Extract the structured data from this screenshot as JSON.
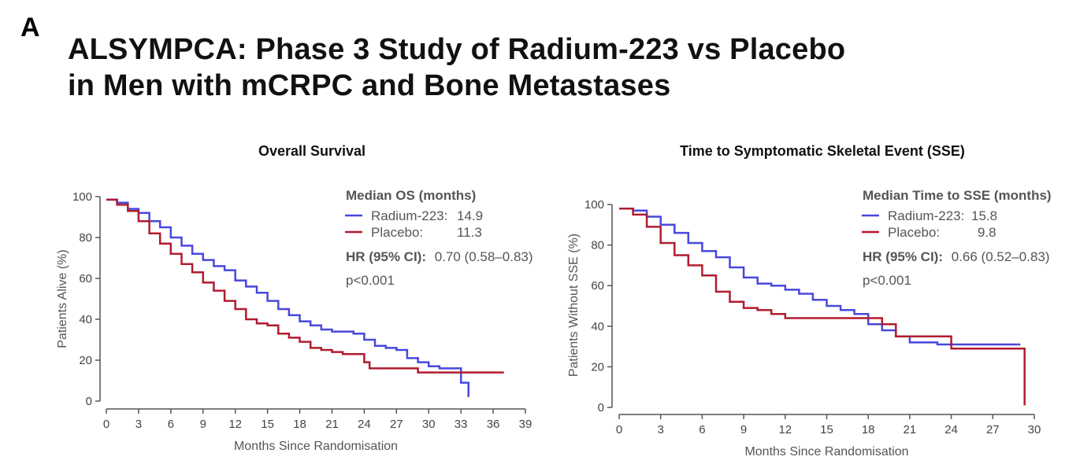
{
  "figure": {
    "panel_label": "A",
    "title_line1": "ALSYMPCA: Phase 3 Study of Radium-223 vs Placebo",
    "title_line2": "in Men with mCRPC and Bone Metastases"
  },
  "colors": {
    "radium": "#4848dc",
    "placebo": "#b01c2e",
    "axis": "#555555"
  },
  "chart_data": [
    {
      "type": "line",
      "title": "Overall Survival",
      "xlabel": "Months Since Randomisation",
      "ylabel": "Patients Alive (%)",
      "xlim": [
        0,
        39
      ],
      "ylim": [
        0,
        100
      ],
      "xticks": [
        0,
        3,
        6,
        9,
        12,
        15,
        18,
        21,
        24,
        27,
        30,
        33,
        36,
        39
      ],
      "yticks": [
        0,
        20,
        40,
        60,
        80,
        100
      ],
      "legend": {
        "heading": "Median OS (months)",
        "entries": [
          {
            "name": "Radium-223:",
            "value": "14.9"
          },
          {
            "name": "Placebo:",
            "value": "11.3"
          }
        ],
        "hr_label": "HR (95% CI):",
        "hr_value": "0.70 (0.58–0.83)",
        "p_value": "p<0.001"
      },
      "series": [
        {
          "name": "Radium-223",
          "points": [
            [
              0,
              98.5
            ],
            [
              1,
              97
            ],
            [
              2,
              94
            ],
            [
              3,
              92
            ],
            [
              4,
              88
            ],
            [
              5,
              85
            ],
            [
              6,
              80
            ],
            [
              7,
              76
            ],
            [
              8,
              72
            ],
            [
              9,
              69
            ],
            [
              10,
              66
            ],
            [
              11,
              64
            ],
            [
              12,
              59
            ],
            [
              13,
              56
            ],
            [
              14,
              53
            ],
            [
              15,
              49
            ],
            [
              16,
              45
            ],
            [
              17,
              42
            ],
            [
              18,
              39
            ],
            [
              19,
              37
            ],
            [
              20,
              35
            ],
            [
              21,
              34
            ],
            [
              22,
              34
            ],
            [
              23,
              33
            ],
            [
              24,
              30
            ],
            [
              25,
              27
            ],
            [
              26,
              26
            ],
            [
              27,
              25
            ],
            [
              28,
              21
            ],
            [
              29,
              19
            ],
            [
              30,
              17
            ],
            [
              31,
              16
            ],
            [
              32,
              16
            ],
            [
              33,
              9
            ],
            [
              33.7,
              9
            ],
            [
              33.7,
              2
            ]
          ]
        },
        {
          "name": "Placebo",
          "points": [
            [
              0,
              98.5
            ],
            [
              1,
              96
            ],
            [
              2,
              93
            ],
            [
              3,
              88
            ],
            [
              4,
              82
            ],
            [
              5,
              77
            ],
            [
              6,
              72
            ],
            [
              7,
              67
            ],
            [
              8,
              63
            ],
            [
              9,
              58
            ],
            [
              10,
              54
            ],
            [
              11,
              49
            ],
            [
              12,
              45
            ],
            [
              13,
              40
            ],
            [
              14,
              38
            ],
            [
              15,
              37
            ],
            [
              16,
              33
            ],
            [
              17,
              31
            ],
            [
              18,
              29
            ],
            [
              19,
              26
            ],
            [
              20,
              25
            ],
            [
              21,
              24
            ],
            [
              22,
              23
            ],
            [
              23,
              23
            ],
            [
              24,
              19
            ],
            [
              24.5,
              16
            ],
            [
              26,
              16
            ],
            [
              28,
              16
            ],
            [
              29,
              14
            ],
            [
              31,
              14
            ],
            [
              33,
              14
            ],
            [
              35,
              14
            ],
            [
              37,
              14
            ]
          ]
        }
      ]
    },
    {
      "type": "line",
      "title": "Time to Symptomatic Skeletal Event (SSE)",
      "xlabel": "Months Since Randomisation",
      "ylabel": "Patients Without SSE (%)",
      "xlim": [
        0,
        30
      ],
      "ylim": [
        0,
        100
      ],
      "xticks": [
        0,
        3,
        6,
        9,
        12,
        15,
        18,
        21,
        24,
        27,
        30
      ],
      "yticks": [
        0,
        20,
        40,
        60,
        80,
        100
      ],
      "legend": {
        "heading": "Median Time to SSE (months)",
        "entries": [
          {
            "name": "Radium-223:",
            "value": "15.8"
          },
          {
            "name": "Placebo:",
            "value": "9.8"
          }
        ],
        "hr_label": "HR (95% CI):",
        "hr_value": "0.66 (0.52–0.83)",
        "p_value": "p<0.001"
      },
      "series": [
        {
          "name": "Radium-223",
          "points": [
            [
              0,
              98
            ],
            [
              1,
              97
            ],
            [
              2,
              94
            ],
            [
              3,
              90
            ],
            [
              4,
              86
            ],
            [
              5,
              81
            ],
            [
              6,
              77
            ],
            [
              7,
              74
            ],
            [
              8,
              69
            ],
            [
              9,
              64
            ],
            [
              10,
              61
            ],
            [
              11,
              60
            ],
            [
              12,
              58
            ],
            [
              13,
              56
            ],
            [
              14,
              53
            ],
            [
              15,
              50
            ],
            [
              16,
              48
            ],
            [
              17,
              46
            ],
            [
              18,
              41
            ],
            [
              19,
              38
            ],
            [
              20,
              35
            ],
            [
              21,
              32
            ],
            [
              22,
              32
            ],
            [
              23,
              31
            ],
            [
              24,
              31
            ],
            [
              26,
              31
            ],
            [
              28,
              31
            ],
            [
              29,
              31
            ]
          ]
        },
        {
          "name": "Placebo",
          "points": [
            [
              0,
              98
            ],
            [
              1,
              95
            ],
            [
              2,
              89
            ],
            [
              3,
              81
            ],
            [
              4,
              75
            ],
            [
              5,
              70
            ],
            [
              6,
              65
            ],
            [
              7,
              57
            ],
            [
              8,
              52
            ],
            [
              9,
              49
            ],
            [
              10,
              48
            ],
            [
              11,
              46
            ],
            [
              12,
              44
            ],
            [
              14,
              44
            ],
            [
              16,
              44
            ],
            [
              18,
              44
            ],
            [
              19,
              41
            ],
            [
              20,
              41
            ],
            [
              20,
              35
            ],
            [
              22,
              35
            ],
            [
              24,
              35
            ],
            [
              24,
              29
            ],
            [
              26,
              29
            ],
            [
              29,
              29
            ],
            [
              29.3,
              29
            ],
            [
              29.3,
              1
            ]
          ]
        }
      ]
    }
  ]
}
